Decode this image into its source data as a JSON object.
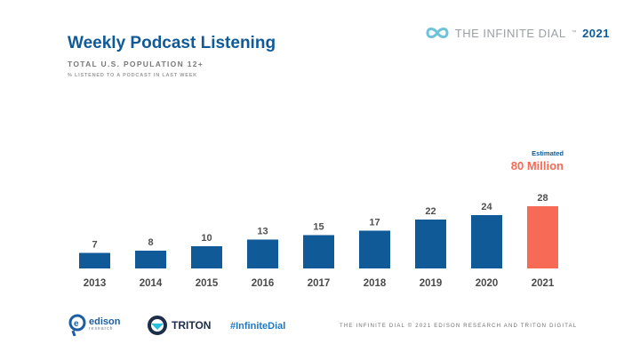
{
  "header": {
    "title": "Weekly Podcast Listening",
    "subtitle": "TOTAL U.S. POPULATION 12+",
    "subsubtitle": "% LISTENED TO A PODCAST IN LAST WEEK"
  },
  "brand": {
    "text": "THE INFINITE DIAL",
    "year": "2021",
    "icon": "infinity-icon"
  },
  "chart_data": {
    "type": "bar",
    "categories": [
      "2013",
      "2014",
      "2015",
      "2016",
      "2017",
      "2018",
      "2019",
      "2020",
      "2021"
    ],
    "values": [
      7,
      8,
      10,
      13,
      15,
      17,
      22,
      24,
      28
    ],
    "title": "",
    "xlabel": "",
    "ylabel": "",
    "ylim": [
      0,
      30
    ],
    "grid": false,
    "colors": {
      "bar": "#0f5a97",
      "highlight": "#f76a55",
      "label": "#505050"
    },
    "highlight_index": 8,
    "annotation": {
      "label": "Estimated",
      "value": "80 Million"
    }
  },
  "footer": {
    "edison": {
      "name": "edison",
      "sub": "research",
      "icon": "edison-logo-icon"
    },
    "triton": {
      "name": "TRITON",
      "icon": "triton-logo-icon"
    },
    "hashtag": "#InfiniteDial",
    "copyright": "THE INFINITE DIAL  © 2021 EDISON RESEARCH AND TRITON DIGITAL"
  }
}
